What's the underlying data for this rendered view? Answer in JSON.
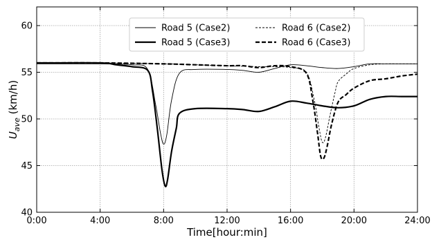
{
  "chart_data": {
    "type": "line",
    "title": "",
    "xlabel": "Time[hour:min]",
    "ylabel": {
      "main": "U",
      "sub": "ave",
      "suffix": " (km/h)"
    },
    "xlim": [
      0,
      24
    ],
    "ylim": [
      40,
      62
    ],
    "xticks": [
      {
        "value": 0,
        "label": "0:00"
      },
      {
        "value": 4,
        "label": "4:00"
      },
      {
        "value": 8,
        "label": "8:00"
      },
      {
        "value": 12,
        "label": "12:00"
      },
      {
        "value": 16,
        "label": "16:00"
      },
      {
        "value": 20,
        "label": "20:00"
      },
      {
        "value": 24,
        "label": "24:00"
      }
    ],
    "yticks": [
      {
        "value": 40,
        "label": "40"
      },
      {
        "value": 45,
        "label": "45"
      },
      {
        "value": 50,
        "label": "50"
      },
      {
        "value": 55,
        "label": "55"
      },
      {
        "value": 60,
        "label": "60"
      }
    ],
    "grid": true,
    "legend_position": "top-center",
    "series": [
      {
        "name": "Road 5 (Case2)",
        "color": "#000000",
        "style": "thin-solid",
        "x": [
          0,
          4,
          6,
          7,
          7.5,
          7.8,
          8.0,
          8.2,
          8.5,
          9.0,
          10,
          12,
          13,
          14,
          15,
          16,
          17,
          18,
          19,
          20,
          21,
          22,
          23,
          24
        ],
        "y": [
          55.9,
          55.9,
          55.8,
          55.3,
          51.5,
          48.5,
          47.3,
          48.3,
          52.0,
          54.9,
          55.3,
          55.3,
          55.2,
          55.0,
          55.4,
          55.8,
          55.7,
          55.5,
          55.4,
          55.6,
          55.9,
          55.9,
          55.9,
          55.9
        ]
      },
      {
        "name": "Road 5 (Case3)",
        "color": "#000000",
        "style": "thick-solid",
        "x": [
          0,
          4,
          5,
          6,
          7,
          7.3,
          7.6,
          7.9,
          8.1,
          8.25,
          8.5,
          8.8,
          9.0,
          10,
          12,
          13,
          14,
          15,
          16,
          17,
          18,
          19,
          20,
          21,
          22,
          23,
          24
        ],
        "y": [
          56.0,
          56.0,
          55.8,
          55.6,
          55.2,
          53.0,
          49.0,
          44.5,
          42.8,
          43.5,
          46.5,
          49.0,
          50.6,
          51.1,
          51.1,
          51.0,
          50.8,
          51.3,
          51.9,
          51.7,
          51.4,
          51.2,
          51.4,
          52.1,
          52.4,
          52.4,
          52.4
        ]
      },
      {
        "name": "Road 6 (Case2)",
        "color": "#000000",
        "style": "thin-dashed",
        "x": [
          0,
          4,
          8,
          10,
          12,
          14,
          15,
          16,
          17,
          17.5,
          17.8,
          18.0,
          18.2,
          18.5,
          18.8,
          19.0,
          19.5,
          20,
          21,
          22,
          23,
          24
        ],
        "y": [
          56.0,
          56.0,
          55.9,
          55.8,
          55.7,
          55.6,
          55.6,
          55.5,
          55.0,
          52.0,
          49.0,
          47.5,
          48.0,
          50.5,
          52.8,
          54.0,
          54.8,
          55.4,
          55.8,
          55.9,
          55.9,
          55.9
        ]
      },
      {
        "name": "Road 6 (Case3)",
        "color": "#000000",
        "style": "thick-dashed",
        "x": [
          0,
          4,
          8,
          10,
          12,
          13,
          14,
          15,
          16,
          17,
          17.4,
          17.7,
          17.9,
          18.1,
          18.3,
          18.6,
          19.0,
          19.5,
          20,
          21,
          22,
          23,
          24
        ],
        "y": [
          56.0,
          56.0,
          55.9,
          55.8,
          55.7,
          55.7,
          55.5,
          55.7,
          55.6,
          54.9,
          52.0,
          48.5,
          46.0,
          45.8,
          47.0,
          49.5,
          51.8,
          52.6,
          53.3,
          54.1,
          54.3,
          54.6,
          54.8
        ]
      }
    ]
  }
}
